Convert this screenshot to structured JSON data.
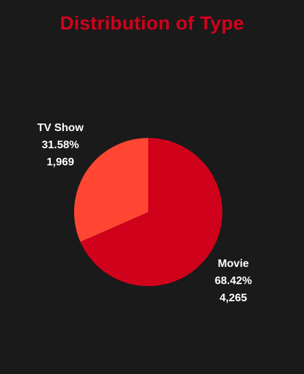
{
  "chart_data": {
    "type": "pie",
    "title": "Distribution of Type",
    "colors": {
      "title": "#d0021b",
      "background": "#1a1a1a"
    },
    "slices": [
      {
        "label": "Movie",
        "percent": "68.42%",
        "count": "4,265",
        "value": 4265,
        "color": "#d0021b"
      },
      {
        "label": "TV Show",
        "percent": "31.58%",
        "count": "1,969",
        "value": 1969,
        "color": "#ff4633"
      }
    ]
  }
}
